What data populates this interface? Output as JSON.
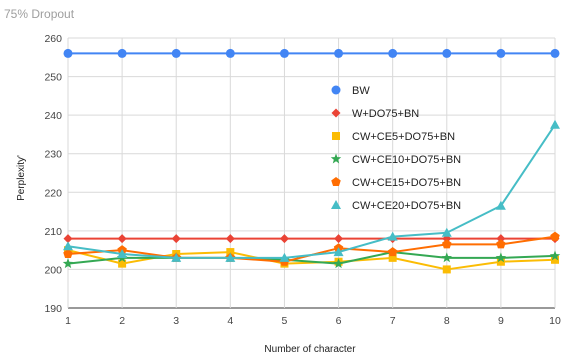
{
  "chart_data": {
    "type": "line",
    "title": "75% Dropout",
    "xlabel": "Number of character",
    "ylabel": "Perplexity'",
    "x": [
      1,
      2,
      3,
      4,
      5,
      6,
      7,
      8,
      9,
      10
    ],
    "xlim": [
      1,
      10
    ],
    "ylim": [
      190,
      260
    ],
    "yticks": [
      190,
      200,
      210,
      220,
      230,
      240,
      250,
      260
    ],
    "grid": true,
    "legend_position": "right",
    "series": [
      {
        "name": "BW",
        "color": "#4285f4",
        "marker": "circle",
        "values": [
          256,
          256,
          256,
          256,
          256,
          256,
          256,
          256,
          256,
          256
        ]
      },
      {
        "name": "W+DO75+BN",
        "color": "#ea4335",
        "marker": "diamond",
        "values": [
          208,
          208,
          208,
          208,
          208,
          208,
          208,
          208,
          208,
          208
        ]
      },
      {
        "name": "CW+CE5+DO75+BN",
        "color": "#fbbc04",
        "marker": "square",
        "values": [
          205,
          201.5,
          204,
          204.5,
          201.5,
          202,
          203,
          200,
          202,
          202.5
        ]
      },
      {
        "name": "CW+CE10+DO75+BN",
        "color": "#34a853",
        "marker": "star",
        "values": [
          201.5,
          203,
          203,
          203,
          202.5,
          201.5,
          204.5,
          203,
          203,
          203.5
        ]
      },
      {
        "name": "CW+CE15+DO75+BN",
        "color": "#ff6d01",
        "marker": "pentagon",
        "values": [
          204,
          205,
          203,
          203,
          202,
          205.5,
          204.5,
          206.5,
          206.5,
          208.5
        ]
      },
      {
        "name": "CW+CE20+DO75+BN",
        "color": "#46bdc6",
        "marker": "triangle",
        "values": [
          206,
          204,
          203,
          203,
          203,
          204.5,
          208.5,
          209.5,
          216.5,
          237.5
        ]
      }
    ]
  }
}
